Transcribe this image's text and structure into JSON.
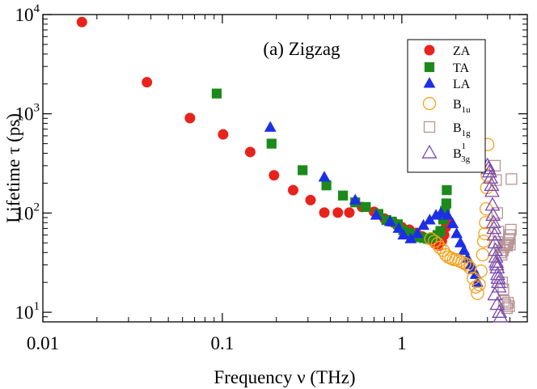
{
  "chart_data": {
    "type": "scatter",
    "annotation": "(a) Zigzag",
    "xlabel": "Frequency ν  (THz)",
    "ylabel": "Lifetime τ (ps)",
    "x_scale": "log",
    "y_scale": "log",
    "xlim": [
      0.01,
      5
    ],
    "ylim": [
      8,
      10000
    ],
    "x_ticks": [
      {
        "value": 0.01,
        "label": "0.01"
      },
      {
        "value": 0.1,
        "label": "0.1"
      },
      {
        "value": 1,
        "label": "1"
      }
    ],
    "y_ticks": [
      {
        "value": 10,
        "base": "10",
        "exp": "1"
      },
      {
        "value": 100,
        "base": "10",
        "exp": "2"
      },
      {
        "value": 1000,
        "base": "10",
        "exp": "3"
      },
      {
        "value": 10000,
        "base": "10",
        "exp": "4"
      }
    ],
    "legend_position": "top-right",
    "series": [
      {
        "name": "ZA",
        "sub": "",
        "sup": "",
        "marker": "circle",
        "filled": true,
        "color": "#e8231c",
        "points": [
          [
            0.0165,
            8400
          ],
          [
            0.038,
            2080
          ],
          [
            0.066,
            905
          ],
          [
            0.101,
            620
          ],
          [
            0.143,
            412
          ],
          [
            0.194,
            240
          ],
          [
            0.248,
            170
          ],
          [
            0.31,
            135
          ],
          [
            0.37,
            101
          ],
          [
            0.44,
            101
          ],
          [
            0.51,
            101
          ],
          [
            0.6,
            115
          ],
          [
            0.7,
            103
          ],
          [
            0.8,
            88
          ],
          [
            0.9,
            80
          ],
          [
            1.0,
            72
          ],
          [
            1.1,
            68
          ],
          [
            1.2,
            63
          ],
          [
            1.3,
            58
          ],
          [
            1.42,
            54
          ],
          [
            1.53,
            49
          ],
          [
            1.6,
            47
          ],
          [
            1.67,
            52
          ],
          [
            1.72,
            60
          ],
          [
            1.76,
            72
          ],
          [
            1.78,
            80
          ]
        ]
      },
      {
        "name": "TA",
        "sub": "",
        "sup": "",
        "marker": "square",
        "filled": true,
        "color": "#1b8a1b",
        "points": [
          [
            0.093,
            1600
          ],
          [
            0.188,
            500
          ],
          [
            0.28,
            270
          ],
          [
            0.38,
            190
          ],
          [
            0.47,
            150
          ],
          [
            0.55,
            128
          ],
          [
            0.63,
            115
          ],
          [
            0.74,
            98
          ],
          [
            0.82,
            85
          ],
          [
            0.88,
            82
          ],
          [
            0.95,
            77
          ],
          [
            1.02,
            67
          ],
          [
            1.1,
            63
          ],
          [
            1.18,
            60
          ],
          [
            1.26,
            57
          ],
          [
            1.33,
            56
          ],
          [
            1.4,
            55
          ],
          [
            1.5,
            57
          ],
          [
            1.58,
            60
          ],
          [
            1.64,
            66
          ],
          [
            1.7,
            86
          ],
          [
            1.74,
            105
          ],
          [
            1.77,
            125
          ],
          [
            1.78,
            170
          ]
        ]
      },
      {
        "name": "LA",
        "sub": "",
        "sup": "",
        "marker": "triangle",
        "filled": true,
        "color": "#1c2ee6",
        "points": [
          [
            0.185,
            730
          ],
          [
            0.37,
            230
          ],
          [
            0.55,
            135
          ],
          [
            0.72,
            95
          ],
          [
            0.86,
            82
          ],
          [
            0.96,
            70
          ],
          [
            1.02,
            60
          ],
          [
            1.12,
            55
          ],
          [
            1.22,
            62
          ],
          [
            1.32,
            75
          ],
          [
            1.43,
            85
          ],
          [
            1.55,
            95
          ],
          [
            1.65,
            100
          ],
          [
            1.8,
            95
          ],
          [
            1.92,
            78
          ],
          [
            2.02,
            62
          ],
          [
            2.12,
            50
          ],
          [
            2.22,
            42
          ],
          [
            2.32,
            35
          ],
          [
            2.42,
            30
          ],
          [
            2.5,
            27
          ],
          [
            2.58,
            24
          ],
          [
            2.64,
            20
          ]
        ]
      },
      {
        "name": "B",
        "sub": "1u",
        "sup": "",
        "marker": "circle",
        "filled": false,
        "color": "#f2a21e",
        "points": [
          [
            1.45,
            55
          ],
          [
            1.52,
            52
          ],
          [
            1.58,
            49
          ],
          [
            1.63,
            45
          ],
          [
            1.7,
            42
          ],
          [
            1.76,
            38
          ],
          [
            1.82,
            36
          ],
          [
            1.88,
            35
          ],
          [
            1.94,
            34
          ],
          [
            2.0,
            34
          ],
          [
            2.08,
            33
          ],
          [
            2.16,
            32
          ],
          [
            2.24,
            31
          ],
          [
            2.32,
            30
          ],
          [
            2.4,
            28
          ],
          [
            2.5,
            22
          ],
          [
            2.58,
            18
          ],
          [
            2.64,
            15.5
          ],
          [
            2.7,
            19
          ],
          [
            2.76,
            26
          ],
          [
            2.82,
            38
          ],
          [
            2.86,
            52
          ],
          [
            2.9,
            62
          ],
          [
            2.93,
            80
          ],
          [
            2.95,
            110
          ],
          [
            2.97,
            180
          ],
          [
            2.99,
            240
          ],
          [
            3.01,
            490
          ]
        ]
      },
      {
        "name": "B",
        "sub": "1g",
        "sup": "",
        "marker": "square",
        "filled": false,
        "color": "#b89494",
        "points": [
          [
            3.3,
            300
          ],
          [
            3.35,
            215
          ],
          [
            3.4,
            100
          ],
          [
            3.45,
            65
          ],
          [
            3.5,
            48
          ],
          [
            3.55,
            40
          ],
          [
            3.6,
            38
          ],
          [
            3.65,
            42
          ],
          [
            3.7,
            45
          ],
          [
            3.75,
            47
          ],
          [
            3.8,
            48
          ],
          [
            3.85,
            47
          ],
          [
            3.9,
            50
          ],
          [
            3.95,
            55
          ],
          [
            4.0,
            60
          ],
          [
            4.05,
            68
          ],
          [
            4.0,
            48
          ],
          [
            4.08,
            220
          ],
          [
            3.7,
            13
          ],
          [
            3.78,
            12
          ],
          [
            3.85,
            11
          ],
          [
            3.9,
            12.5
          ],
          [
            3.96,
            11.5
          ],
          [
            3.62,
            20
          ],
          [
            3.68,
            17
          ]
        ]
      },
      {
        "name": "B",
        "sub": "3g",
        "sup": "1",
        "marker": "triangle",
        "filled": false,
        "color": "#7a4ab0",
        "points": [
          [
            3.0,
            300
          ],
          [
            3.04,
            280
          ],
          [
            3.08,
            260
          ],
          [
            3.12,
            225
          ],
          [
            3.16,
            190
          ],
          [
            3.18,
            165
          ],
          [
            3.2,
            120
          ],
          [
            3.22,
            95
          ],
          [
            3.24,
            80
          ],
          [
            3.26,
            70
          ],
          [
            3.28,
            60
          ],
          [
            3.3,
            50
          ],
          [
            3.32,
            42
          ],
          [
            3.34,
            36
          ],
          [
            3.36,
            32
          ],
          [
            3.38,
            30
          ],
          [
            3.4,
            28
          ],
          [
            3.42,
            24
          ],
          [
            3.44,
            22
          ],
          [
            3.46,
            20
          ],
          [
            3.48,
            18
          ],
          [
            3.3,
            15
          ],
          [
            3.4,
            12
          ],
          [
            3.5,
            10
          ],
          [
            3.55,
            9
          ]
        ]
      }
    ]
  }
}
